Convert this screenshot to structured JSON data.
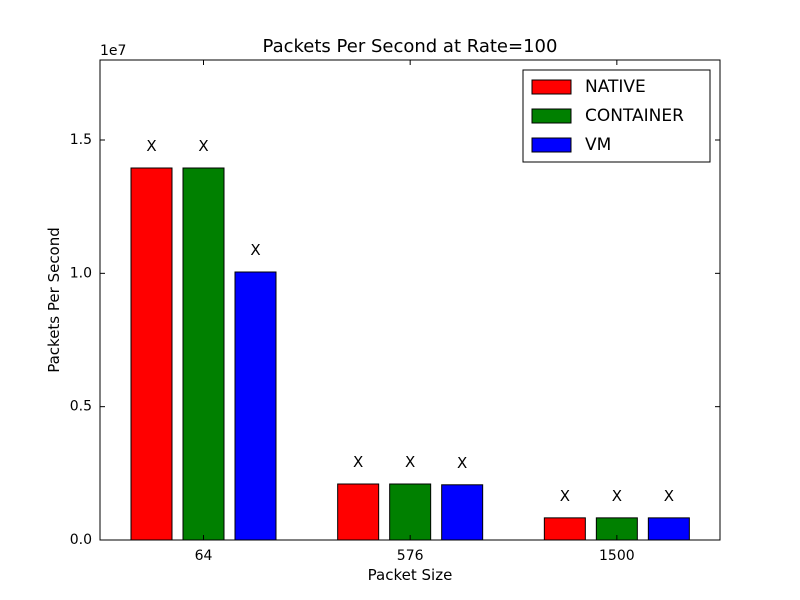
{
  "chart_data": {
    "type": "bar",
    "title": "Packets Per Second at Rate=100",
    "xlabel": "Packet Size",
    "ylabel": "Packets Per Second",
    "offset_label": "1e7",
    "categories": [
      "64",
      "576",
      "1500"
    ],
    "ylim": [
      0,
      18000000
    ],
    "yticks": [
      0,
      5000000,
      10000000,
      15000000
    ],
    "ytick_labels": [
      "0.0",
      "0.5",
      "1.0",
      "1.5"
    ],
    "grid": false,
    "legend_position": "top-right",
    "series": [
      {
        "name": "NATIVE",
        "color": "#ff0000",
        "values": [
          13950000,
          2100000,
          830000
        ],
        "marker_labels": [
          "X",
          "X",
          "X"
        ]
      },
      {
        "name": "CONTAINER",
        "color": "#008000",
        "values": [
          13950000,
          2100000,
          830000
        ],
        "marker_labels": [
          "X",
          "X",
          "X"
        ]
      },
      {
        "name": "VM",
        "color": "#0000ff",
        "values": [
          10050000,
          2070000,
          830000
        ],
        "marker_labels": [
          "X",
          "X",
          "X"
        ]
      }
    ]
  }
}
